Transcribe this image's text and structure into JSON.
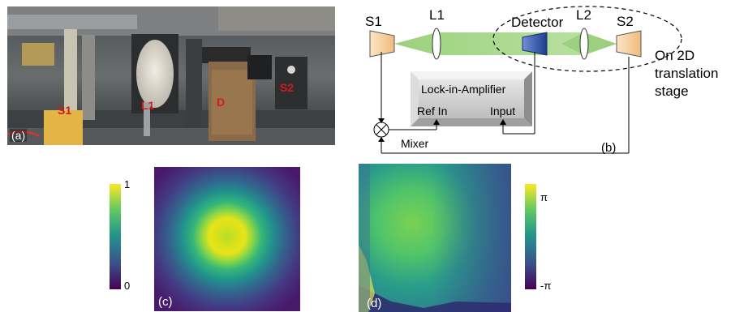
{
  "panel_a": {
    "label": "(a)",
    "tags": {
      "s1": "S1",
      "l1": "L1",
      "d": "D",
      "s2": "S2"
    }
  },
  "panel_b": {
    "label": "(b)",
    "s1": "S1",
    "l1": "L1",
    "detector": "Detector",
    "l2": "L2",
    "s2": "S2",
    "stage_line1": "On 2D",
    "stage_line2": "translation",
    "stage_line3": "stage",
    "lockin": "Lock-in-Amplifier",
    "ref_in": "Ref In",
    "input": "Input",
    "mixer": "Mixer"
  },
  "panel_c": {
    "label": "(c)",
    "colorbar_max": "1",
    "colorbar_min": "0",
    "colormap": [
      "#440154",
      "#3b528b",
      "#21918c",
      "#5ec962",
      "#fde725"
    ]
  },
  "panel_d": {
    "label": "(d)",
    "colorbar_max": "π",
    "colorbar_min": "-π"
  }
}
